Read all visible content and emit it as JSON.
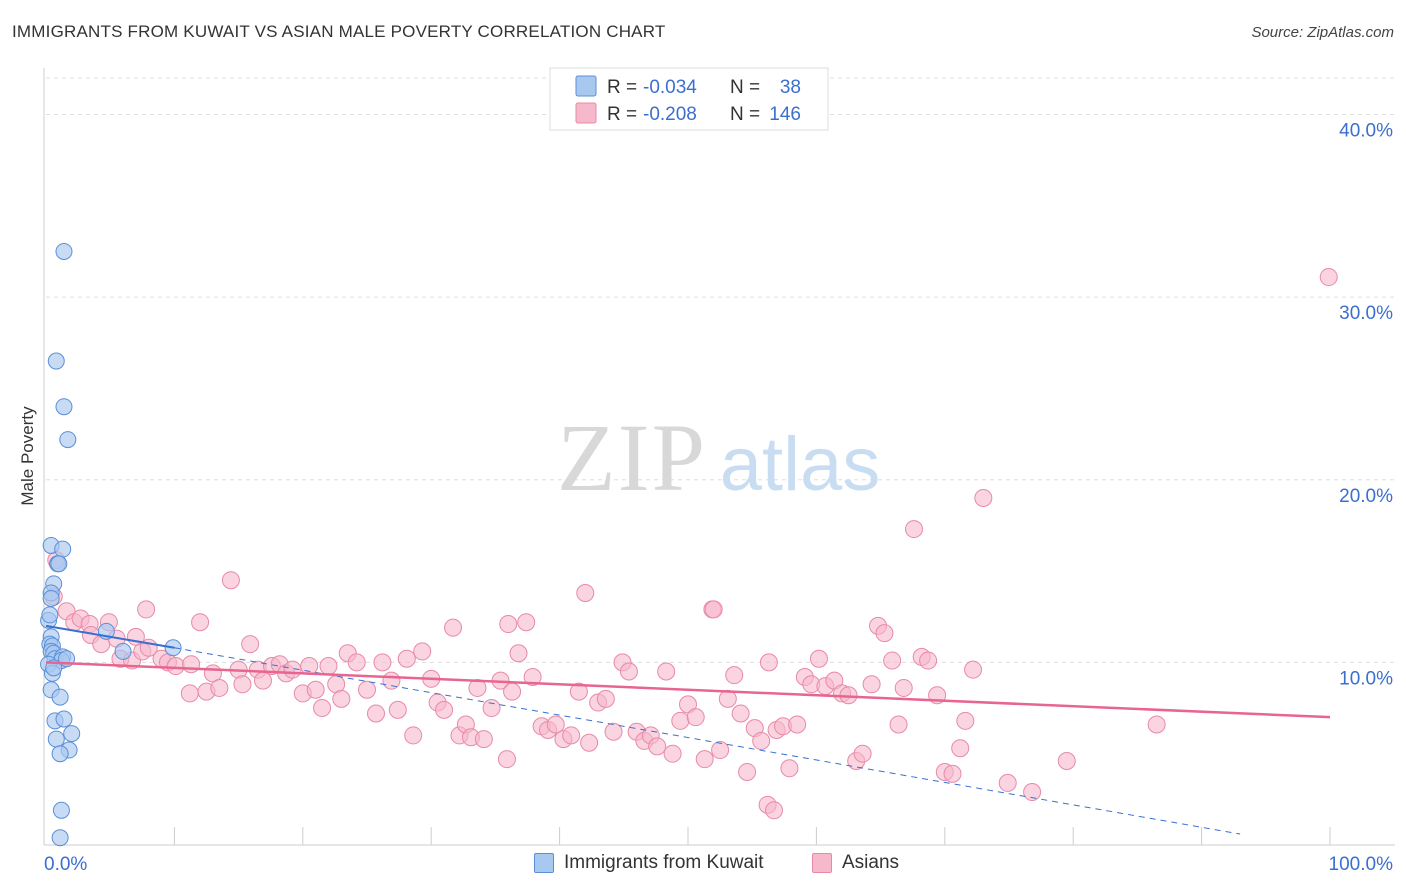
{
  "header": {
    "title": "IMMIGRANTS FROM KUWAIT VS ASIAN MALE POVERTY CORRELATION CHART",
    "source": "Source: ZipAtlas.com"
  },
  "watermark": {
    "zip": "ZIP",
    "atlas": "atlas"
  },
  "colors": {
    "blue_fill": "#a9c8f0",
    "blue_stroke": "#5b8fd8",
    "blue_line": "#3a6fd0",
    "pink_fill": "#f6b8cb",
    "pink_stroke": "#e88aa6",
    "pink_line": "#e8658f",
    "value_blue": "#3a6fd0",
    "grid": "#dddddd"
  },
  "chart_data": {
    "type": "scatter",
    "title": "IMMIGRANTS FROM KUWAIT VS ASIAN MALE POVERTY CORRELATION CHART",
    "xlabel": "",
    "ylabel": "Male Poverty",
    "xlim": [
      0,
      100
    ],
    "ylim": [
      0,
      42
    ],
    "x_tick_labels": [
      "0.0%",
      "100.0%"
    ],
    "y_ticks": [
      10,
      20,
      30,
      40
    ],
    "y_tick_labels": [
      "10.0%",
      "20.0%",
      "30.0%",
      "40.0%"
    ],
    "grid": true,
    "legend_placement": "top-center",
    "legend": [
      {
        "r_label": "R =",
        "r_value": "-0.034",
        "n_label": "N =",
        "n_value": "38"
      },
      {
        "r_label": "R =",
        "r_value": "-0.208",
        "n_label": "N =",
        "n_value": "146"
      }
    ],
    "series": [
      {
        "name": "Immigrants from Kuwait",
        "color": "#a9c8f0",
        "trend": {
          "x": [
            0,
            10
          ],
          "y": [
            12.0,
            10.8
          ]
        },
        "trend_extension": {
          "x": [
            10,
            93
          ],
          "y": [
            10.8,
            0.6
          ]
        },
        "points": [
          [
            1.4,
            32.5
          ],
          [
            0.8,
            26.5
          ],
          [
            1.4,
            24.0
          ],
          [
            1.7,
            22.2
          ],
          [
            0.4,
            16.4
          ],
          [
            1.3,
            16.2
          ],
          [
            0.9,
            15.4
          ],
          [
            0.6,
            14.3
          ],
          [
            0.4,
            13.8
          ],
          [
            0.4,
            13.5
          ],
          [
            0.2,
            12.3
          ],
          [
            0.4,
            11.4
          ],
          [
            0.3,
            11.0
          ],
          [
            0.5,
            10.9
          ],
          [
            0.4,
            10.6
          ],
          [
            0.6,
            10.5
          ],
          [
            0.7,
            10.2
          ],
          [
            1.3,
            10.3
          ],
          [
            1.2,
            10.1
          ],
          [
            1.6,
            10.2
          ],
          [
            0.2,
            9.9
          ],
          [
            0.5,
            9.4
          ],
          [
            0.4,
            8.5
          ],
          [
            1.1,
            8.1
          ],
          [
            0.7,
            6.8
          ],
          [
            1.4,
            6.9
          ],
          [
            2.0,
            6.1
          ],
          [
            0.8,
            5.8
          ],
          [
            1.8,
            5.2
          ],
          [
            1.1,
            5.0
          ],
          [
            1.2,
            1.9
          ],
          [
            1.1,
            0.4
          ],
          [
            9.9,
            10.8
          ],
          [
            6.0,
            10.6
          ],
          [
            4.7,
            11.7
          ],
          [
            1.0,
            15.4
          ],
          [
            0.6,
            9.7
          ],
          [
            0.3,
            12.6
          ]
        ]
      },
      {
        "name": "Asians",
        "color": "#f6b8cb",
        "trend": {
          "x": [
            0,
            100
          ],
          "y": [
            10.0,
            7.0
          ]
        },
        "points": [
          [
            0.6,
            13.6
          ],
          [
            0.8,
            15.6
          ],
          [
            1.6,
            12.8
          ],
          [
            2.2,
            12.2
          ],
          [
            2.7,
            12.4
          ],
          [
            3.4,
            12.1
          ],
          [
            3.5,
            11.5
          ],
          [
            4.3,
            11.0
          ],
          [
            4.9,
            12.2
          ],
          [
            5.5,
            11.3
          ],
          [
            5.8,
            10.2
          ],
          [
            6.7,
            10.1
          ],
          [
            7.5,
            10.6
          ],
          [
            7.0,
            11.4
          ],
          [
            8.0,
            10.8
          ],
          [
            9.0,
            10.2
          ],
          [
            9.5,
            10.0
          ],
          [
            10.1,
            9.8
          ],
          [
            7.8,
            12.9
          ],
          [
            11.3,
            9.9
          ],
          [
            12.0,
            12.2
          ],
          [
            11.2,
            8.3
          ],
          [
            12.5,
            8.4
          ],
          [
            13.0,
            9.4
          ],
          [
            13.5,
            8.6
          ],
          [
            14.4,
            14.5
          ],
          [
            15.0,
            9.6
          ],
          [
            15.3,
            8.8
          ],
          [
            15.9,
            11.0
          ],
          [
            16.5,
            9.6
          ],
          [
            16.9,
            9.0
          ],
          [
            17.6,
            9.8
          ],
          [
            18.2,
            9.9
          ],
          [
            18.7,
            9.4
          ],
          [
            19.2,
            9.6
          ],
          [
            20.0,
            8.3
          ],
          [
            20.5,
            9.8
          ],
          [
            21.0,
            8.5
          ],
          [
            21.5,
            7.5
          ],
          [
            22.0,
            9.8
          ],
          [
            22.6,
            8.8
          ],
          [
            23.0,
            8.0
          ],
          [
            23.5,
            10.5
          ],
          [
            24.2,
            10.0
          ],
          [
            25.0,
            8.5
          ],
          [
            25.7,
            7.2
          ],
          [
            26.2,
            10.0
          ],
          [
            26.9,
            9.0
          ],
          [
            27.4,
            7.4
          ],
          [
            28.1,
            10.2
          ],
          [
            28.6,
            6.0
          ],
          [
            29.3,
            10.6
          ],
          [
            30.0,
            9.1
          ],
          [
            30.5,
            7.8
          ],
          [
            31.0,
            7.4
          ],
          [
            31.7,
            11.9
          ],
          [
            32.2,
            6.0
          ],
          [
            32.7,
            6.6
          ],
          [
            33.1,
            5.9
          ],
          [
            33.6,
            8.6
          ],
          [
            34.1,
            5.8
          ],
          [
            34.7,
            7.5
          ],
          [
            35.4,
            9.0
          ],
          [
            35.9,
            4.7
          ],
          [
            36.3,
            8.4
          ],
          [
            36.8,
            10.5
          ],
          [
            37.4,
            12.2
          ],
          [
            37.9,
            9.2
          ],
          [
            38.6,
            6.5
          ],
          [
            39.1,
            6.3
          ],
          [
            39.7,
            6.6
          ],
          [
            40.3,
            5.8
          ],
          [
            40.9,
            6.0
          ],
          [
            41.5,
            8.4
          ],
          [
            42.0,
            13.8
          ],
          [
            42.3,
            5.6
          ],
          [
            43.0,
            7.8
          ],
          [
            43.6,
            8.0
          ],
          [
            44.2,
            6.2
          ],
          [
            44.9,
            10.0
          ],
          [
            45.4,
            9.5
          ],
          [
            46.0,
            6.2
          ],
          [
            46.6,
            5.7
          ],
          [
            47.1,
            6.0
          ],
          [
            47.6,
            5.4
          ],
          [
            48.3,
            9.5
          ],
          [
            48.8,
            5.0
          ],
          [
            49.4,
            6.8
          ],
          [
            50.0,
            7.7
          ],
          [
            50.6,
            7.0
          ],
          [
            51.3,
            4.7
          ],
          [
            51.9,
            12.9
          ],
          [
            52.5,
            5.2
          ],
          [
            53.1,
            8.0
          ],
          [
            53.6,
            9.3
          ],
          [
            54.1,
            7.2
          ],
          [
            54.6,
            4.0
          ],
          [
            55.2,
            6.4
          ],
          [
            55.7,
            5.7
          ],
          [
            56.3,
            10.0
          ],
          [
            56.9,
            6.3
          ],
          [
            57.4,
            6.5
          ],
          [
            57.9,
            4.2
          ],
          [
            58.5,
            6.6
          ],
          [
            59.1,
            9.2
          ],
          [
            59.6,
            8.8
          ],
          [
            60.2,
            10.2
          ],
          [
            60.7,
            8.7
          ],
          [
            61.4,
            9.0
          ],
          [
            62.0,
            8.3
          ],
          [
            62.5,
            8.2
          ],
          [
            63.1,
            4.6
          ],
          [
            63.6,
            5.0
          ],
          [
            64.3,
            8.8
          ],
          [
            64.8,
            12.0
          ],
          [
            65.3,
            11.6
          ],
          [
            65.9,
            10.1
          ],
          [
            66.4,
            6.6
          ],
          [
            66.8,
            8.6
          ],
          [
            67.6,
            17.3
          ],
          [
            68.2,
            10.3
          ],
          [
            68.7,
            10.1
          ],
          [
            69.4,
            8.2
          ],
          [
            70.0,
            4.0
          ],
          [
            70.6,
            3.9
          ],
          [
            71.2,
            5.3
          ],
          [
            71.6,
            6.8
          ],
          [
            72.2,
            9.6
          ],
          [
            73.0,
            19.0
          ],
          [
            74.9,
            3.4
          ],
          [
            76.8,
            2.9
          ],
          [
            79.5,
            4.6
          ],
          [
            86.5,
            6.6
          ],
          [
            99.9,
            31.1
          ],
          [
            56.2,
            2.2
          ],
          [
            56.7,
            1.9
          ],
          [
            52.0,
            12.9
          ],
          [
            36.0,
            12.1
          ]
        ]
      }
    ]
  },
  "legend_bottom": [
    {
      "label": "Immigrants from Kuwait"
    },
    {
      "label": "Asians"
    }
  ]
}
